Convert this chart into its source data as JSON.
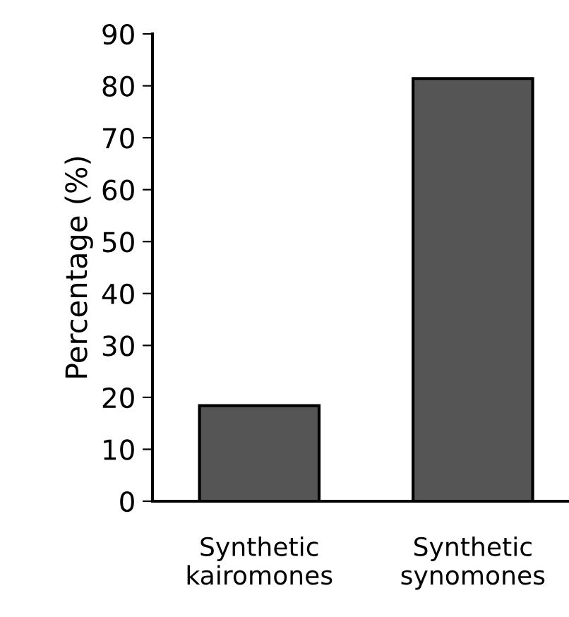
{
  "chart_data": {
    "type": "bar",
    "ylabel": "Percentage (%)",
    "categories": [
      "Synthetic\nkairomones",
      "Synthetic\nsynomones"
    ],
    "values": [
      18.4,
      81.4
    ],
    "color": "#555555",
    "ylim": [
      0,
      90
    ],
    "yticks": [
      0,
      10,
      20,
      30,
      40,
      50,
      60,
      70,
      80,
      90
    ],
    "grid": false
  }
}
